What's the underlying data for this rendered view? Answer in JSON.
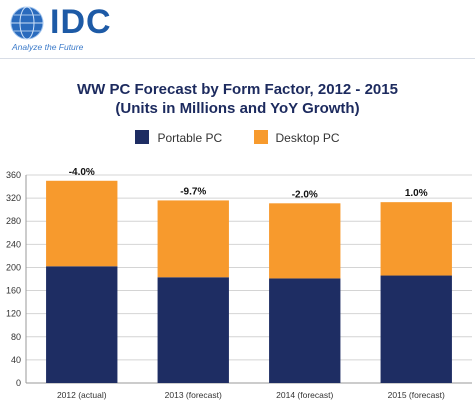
{
  "brand": {
    "logo_text": "IDC",
    "tagline": "Analyze the Future"
  },
  "colors": {
    "portable": "#1e2d63",
    "desktop": "#f79a2d",
    "logo": "#1d5aa6"
  },
  "chart_data": {
    "type": "bar",
    "stacked": true,
    "title": "WW PC Forecast by Form Factor, 2012 - 2015",
    "subtitle": "(Units in Millions and YoY Growth)",
    "categories": [
      "2012 (actual)",
      "2013 (forecast)",
      "2014 (forecast)",
      "2015 (forecast)"
    ],
    "series": [
      {
        "name": "Portable PC",
        "values": [
          202,
          183,
          181,
          186
        ]
      },
      {
        "name": "Desktop PC",
        "values": [
          148,
          133,
          130,
          127
        ]
      }
    ],
    "annotations": [
      "-4.0%",
      "-9.7%",
      "-2.0%",
      "1.0%"
    ],
    "ylim": [
      0,
      360
    ],
    "yticks": [
      0,
      40,
      80,
      120,
      160,
      200,
      240,
      280,
      320,
      360
    ],
    "grid": true,
    "legend": "top-center"
  }
}
